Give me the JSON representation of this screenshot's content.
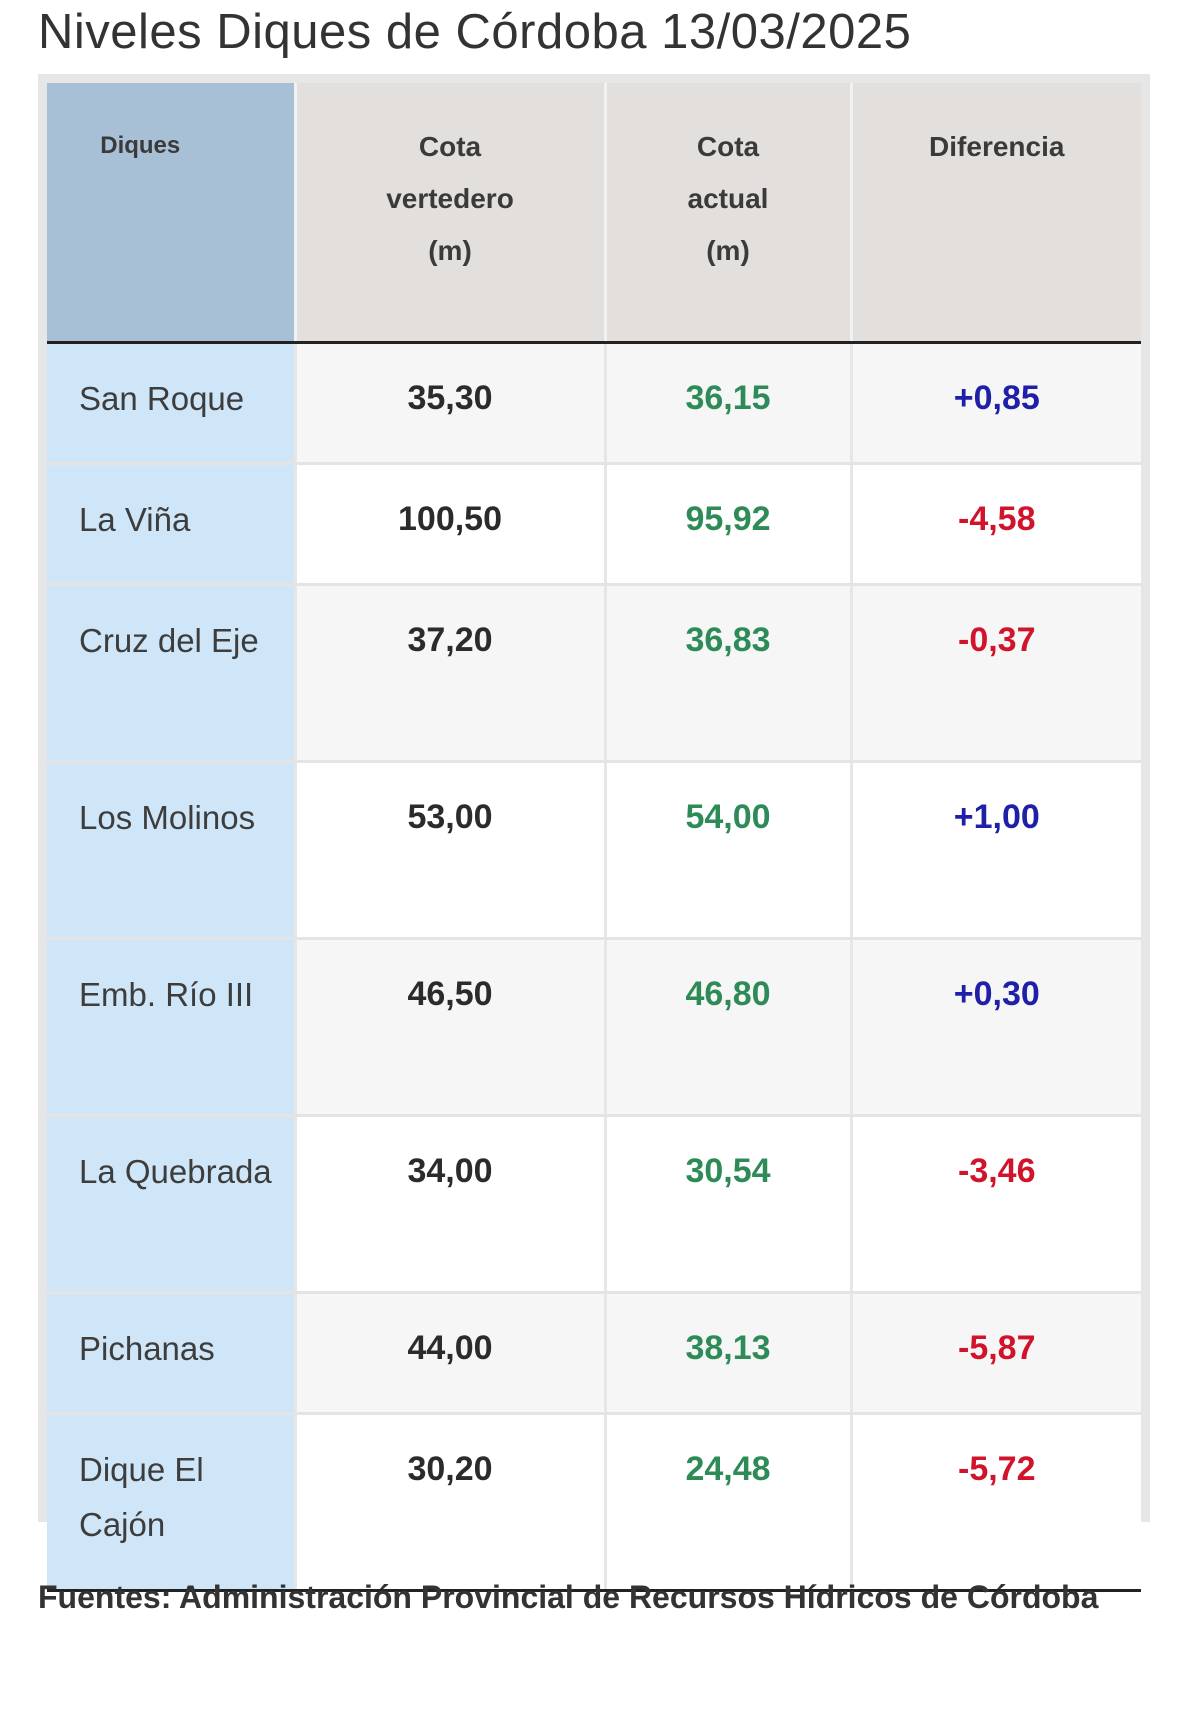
{
  "page": {
    "title": "Niveles Diques de Córdoba 13/03/2025"
  },
  "table": {
    "headers": {
      "dique": "Diques",
      "cota_vertedero": [
        "Cota",
        "vertedero",
        "(m)"
      ],
      "cota_actual": [
        "Cota",
        "actual",
        "(m)"
      ],
      "diferencia": "Diferencia"
    },
    "rows": [
      {
        "name": "San Roque",
        "spill": "35,30",
        "actual": "36,15",
        "diff": "+0,85"
      },
      {
        "name": "La Viña",
        "spill": "100,50",
        "actual": "95,92",
        "diff": "-4,58"
      },
      {
        "name": "Cruz del Eje",
        "spill": "37,20",
        "actual": "36,83",
        "diff": "-0,37"
      },
      {
        "name": "Los Molinos",
        "spill": "53,00",
        "actual": "54,00",
        "diff": "+1,00"
      },
      {
        "name": "Emb. Río III",
        "spill": "46,50",
        "actual": "46,80",
        "diff": "+0,30"
      },
      {
        "name": "La Quebrada",
        "spill": "34,00",
        "actual": "30,54",
        "diff": "-3,46"
      },
      {
        "name": "Pichanas",
        "spill": "44,00",
        "actual": "38,13",
        "diff": "-5,87"
      },
      {
        "name": "Dique El Cajón",
        "spill": "30,20",
        "actual": "24,48",
        "diff": "-5,72"
      }
    ]
  },
  "colors": {
    "actual_value": "#2e8b57",
    "positive_diff": "#1f1fa8",
    "negative_diff": "#d0142c",
    "name_column_bg": "#cfe6f8",
    "name_header_bg": "#a8c0d6"
  },
  "footer": {
    "source": "Fuentes: Administración Provincial de Recursos Hídricos de Córdoba"
  }
}
